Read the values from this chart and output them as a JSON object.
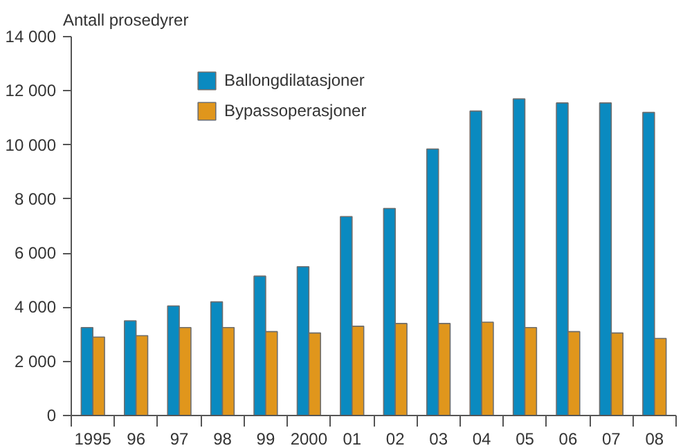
{
  "chart_data": {
    "type": "bar",
    "ylabel": "Antall prosedyrer",
    "categories": [
      "1995",
      "96",
      "97",
      "98",
      "99",
      "2000",
      "01",
      "02",
      "03",
      "04",
      "05",
      "06",
      "07",
      "08"
    ],
    "series": [
      {
        "name": "Ballongdilatasjoner",
        "color": "#0a8ac0",
        "values": [
          3250,
          3500,
          4050,
          4200,
          5150,
          5500,
          7350,
          7650,
          9850,
          11250,
          11700,
          11550,
          11550,
          11200
        ]
      },
      {
        "name": "Bypassoperasjoner",
        "color": "#e0961c",
        "values": [
          2900,
          2950,
          3250,
          3250,
          3100,
          3050,
          3300,
          3400,
          3400,
          3450,
          3250,
          3100,
          3050,
          2850
        ]
      }
    ],
    "ylim": [
      0,
      14000
    ],
    "yticks": [
      {
        "value": 0,
        "label": "0"
      },
      {
        "value": 2000,
        "label": "2 000"
      },
      {
        "value": 4000,
        "label": "4 000"
      },
      {
        "value": 6000,
        "label": "6 000"
      },
      {
        "value": 8000,
        "label": "8 000"
      },
      {
        "value": 10000,
        "label": "10 000"
      },
      {
        "value": 12000,
        "label": "12 000"
      },
      {
        "value": 14000,
        "label": "14 000"
      }
    ],
    "grid": false,
    "legend": "top left"
  }
}
